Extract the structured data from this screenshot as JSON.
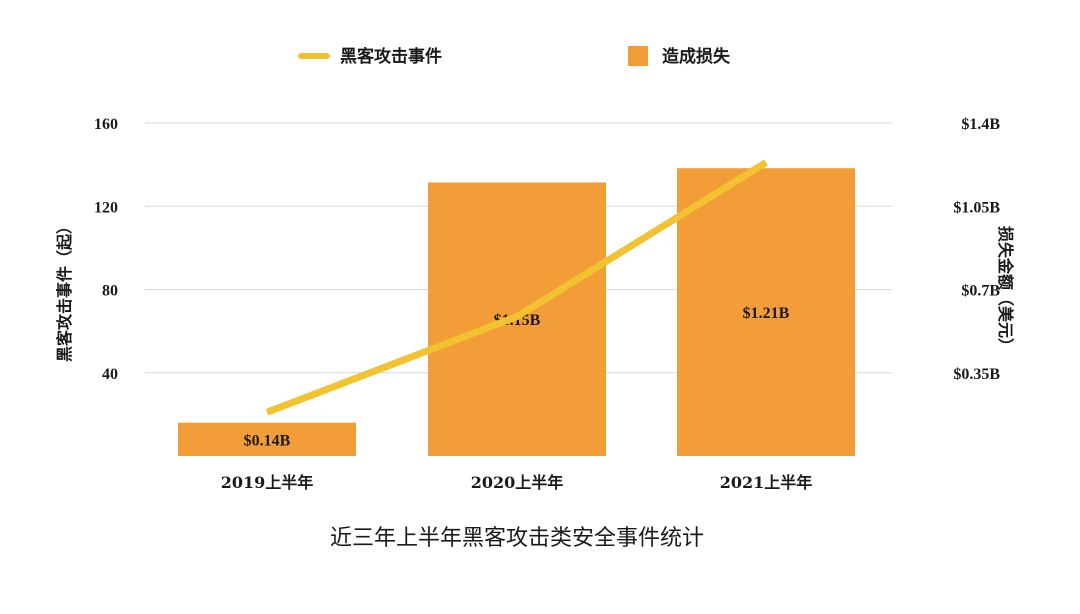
{
  "legend": {
    "line_label": "黑客攻击事件",
    "bar_label": "造成损失"
  },
  "caption": "近三年上半年黑客攻击类安全事件统计",
  "colors": {
    "bar": "#F29D38",
    "line": "#F2C230",
    "grid": "#d9d9d9",
    "text": "#1a1a1a"
  },
  "chart_data": {
    "type": "bar",
    "categories": [
      "2019上半年",
      "2020上半年",
      "2021上半年"
    ],
    "series": [
      {
        "name": "造成损失",
        "type": "bar",
        "axis": "right",
        "values": [
          0.14,
          1.15,
          1.21
        ],
        "labels": [
          "$0.14B",
          "$1.15B",
          "$1.21B"
        ]
      },
      {
        "name": "黑客攻击事件",
        "type": "line",
        "axis": "left",
        "values": [
          21,
          67,
          141
        ]
      }
    ],
    "y_left": {
      "label": "黑客攻击事件（起）",
      "ticks": [
        40,
        80,
        120,
        160
      ],
      "lim": [
        0,
        160
      ]
    },
    "y_right": {
      "label": "损失金额（美元）",
      "ticks": [
        0.35,
        0.7,
        1.05,
        1.4
      ],
      "tick_labels": [
        "$0.35B",
        "$0.7B",
        "$1.05B",
        "$1.4B"
      ],
      "lim": [
        0,
        1.4
      ]
    },
    "grid": true,
    "legend_position": "top"
  }
}
